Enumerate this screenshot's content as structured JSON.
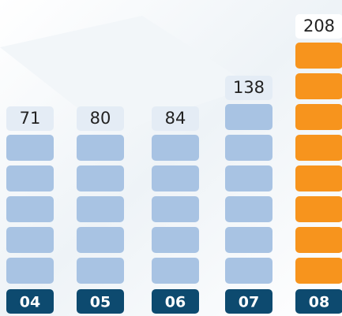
{
  "chart_data": {
    "type": "pictogram",
    "categories": [
      "04",
      "05",
      "06",
      "07",
      "08"
    ],
    "values": [
      71,
      80,
      84,
      138,
      208
    ],
    "blocks": [
      5,
      5,
      5,
      6,
      8
    ],
    "colors": [
      "#a8c3e3",
      "#a8c3e3",
      "#a8c3e3",
      "#a8c3e3",
      "#f7941d"
    ]
  }
}
